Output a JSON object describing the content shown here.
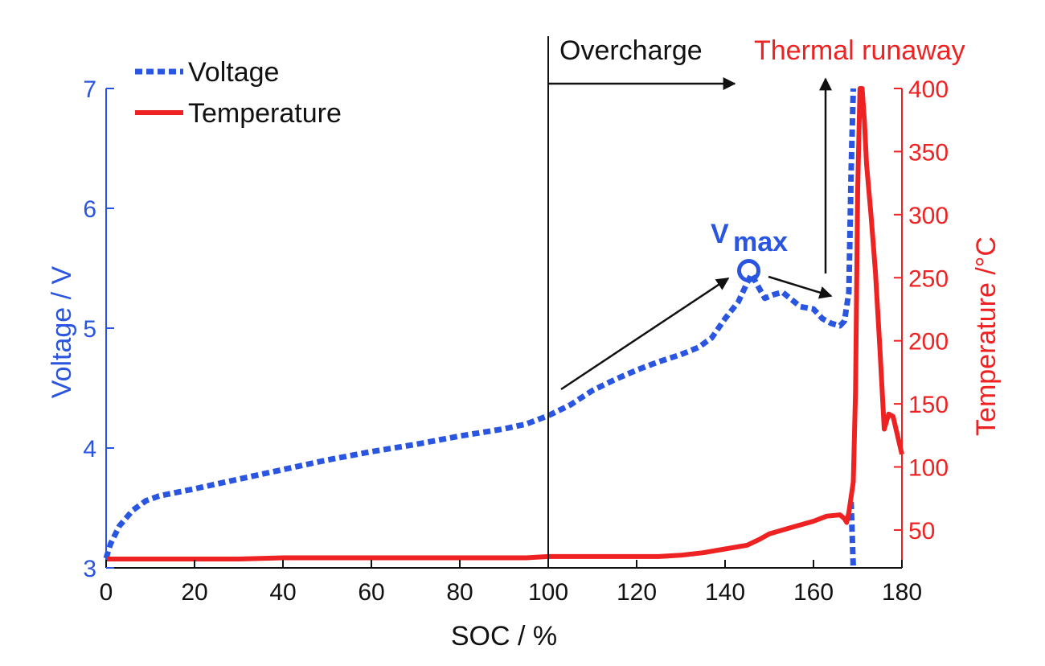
{
  "chart_data": {
    "type": "line",
    "xlabel": "SOC / %",
    "ylabel_left": "Voltage / V",
    "ylabel_right": "Temperature /°C",
    "xlim": [
      0,
      180
    ],
    "ylim_left": [
      3,
      7
    ],
    "ylim_right": [
      20,
      400
    ],
    "x_ticks": [
      0,
      20,
      40,
      60,
      80,
      100,
      120,
      140,
      160,
      180
    ],
    "y_left_ticks": [
      3,
      4,
      5,
      6,
      7
    ],
    "y_right_ticks": [
      50,
      100,
      150,
      200,
      250,
      300,
      350,
      400
    ],
    "grid": false,
    "legend_position": "top-left",
    "series": [
      {
        "name": "Voltage",
        "axis": "left",
        "style": "dotted",
        "color": "#2a55e0",
        "points": [
          [
            0,
            3.08
          ],
          [
            1,
            3.2
          ],
          [
            3,
            3.35
          ],
          [
            6,
            3.48
          ],
          [
            9,
            3.56
          ],
          [
            12,
            3.6
          ],
          [
            20,
            3.66
          ],
          [
            30,
            3.74
          ],
          [
            40,
            3.82
          ],
          [
            50,
            3.9
          ],
          [
            60,
            3.97
          ],
          [
            70,
            4.03
          ],
          [
            80,
            4.1
          ],
          [
            90,
            4.16
          ],
          [
            95,
            4.2
          ],
          [
            100,
            4.27
          ],
          [
            105,
            4.36
          ],
          [
            110,
            4.48
          ],
          [
            115,
            4.57
          ],
          [
            120,
            4.65
          ],
          [
            125,
            4.72
          ],
          [
            130,
            4.78
          ],
          [
            134,
            4.84
          ],
          [
            137,
            4.92
          ],
          [
            140,
            5.08
          ],
          [
            143,
            5.22
          ],
          [
            145,
            5.38
          ],
          [
            146,
            5.45
          ],
          [
            147,
            5.38
          ],
          [
            149,
            5.25
          ],
          [
            151,
            5.28
          ],
          [
            153,
            5.3
          ],
          [
            155,
            5.24
          ],
          [
            157,
            5.18
          ],
          [
            160,
            5.16
          ],
          [
            162,
            5.08
          ],
          [
            164,
            5.04
          ],
          [
            166,
            5.02
          ],
          [
            167,
            5.06
          ],
          [
            168,
            5.3
          ],
          [
            168.5,
            6.3
          ],
          [
            169,
            7.0
          ]
        ]
      },
      {
        "name": "Voltage (drop)",
        "axis": "left",
        "style": "dotted",
        "color": "#2a55e0",
        "points": [
          [
            168.5,
            3.55
          ],
          [
            169,
            3.0
          ]
        ]
      },
      {
        "name": "Temperature",
        "axis": "right",
        "style": "solid",
        "color": "#ee2222",
        "points": [
          [
            0,
            27
          ],
          [
            30,
            27
          ],
          [
            40,
            28
          ],
          [
            60,
            28
          ],
          [
            80,
            28
          ],
          [
            95,
            28
          ],
          [
            100,
            29
          ],
          [
            125,
            29
          ],
          [
            130,
            30
          ],
          [
            135,
            32
          ],
          [
            140,
            35
          ],
          [
            145,
            38
          ],
          [
            148,
            43
          ],
          [
            150,
            47
          ],
          [
            155,
            52
          ],
          [
            160,
            57
          ],
          [
            163,
            61
          ],
          [
            166,
            62
          ],
          [
            167,
            59
          ],
          [
            167.5,
            56
          ],
          [
            168,
            64
          ],
          [
            169,
            88
          ],
          [
            169.5,
            160
          ],
          [
            170,
            320
          ],
          [
            170.5,
            400
          ],
          [
            171,
            400
          ],
          [
            171.5,
            375
          ],
          [
            172,
            340
          ],
          [
            173,
            300
          ],
          [
            174,
            255
          ],
          [
            175,
            195
          ],
          [
            176,
            130
          ],
          [
            177,
            142
          ],
          [
            178,
            140
          ],
          [
            179,
            125
          ],
          [
            180,
            110
          ]
        ]
      }
    ],
    "annotations": {
      "overcharge_label": "Overcharge",
      "thermal_runaway_label": "Thermal runaway",
      "vmax_main": "V",
      "vmax_sub": "max",
      "vmax_point": [
        145,
        5.48
      ]
    }
  }
}
